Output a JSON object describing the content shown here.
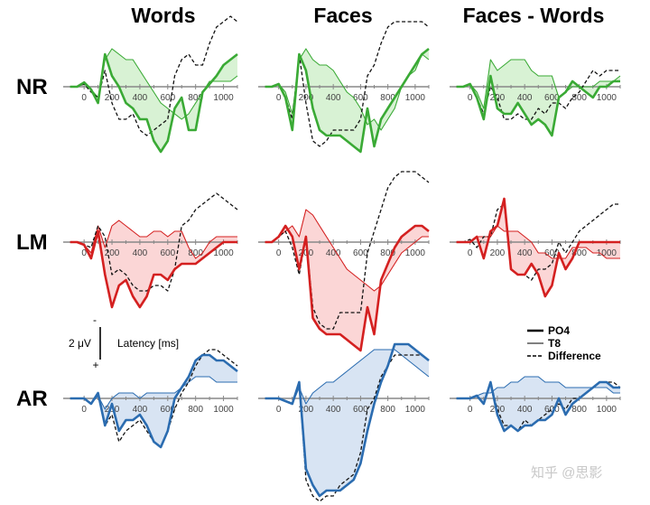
{
  "chart_data": {
    "type": "line",
    "columns": [
      "Words",
      "Faces",
      "Faces - Words"
    ],
    "rows": [
      "NR",
      "LM",
      "AR"
    ],
    "row_colors": {
      "NR": "#3aaa35",
      "LM": "#d42020",
      "AR": "#2b6cb0"
    },
    "row_fills": {
      "NR": "#d8f2d4",
      "LM": "#fbd6d6",
      "AR": "#d8e4f3"
    },
    "x_ticks": [
      0,
      200,
      400,
      600,
      800,
      1000
    ],
    "xlim": [
      -150,
      1100
    ],
    "ylim": [
      -8,
      12
    ],
    "y_note": "negative up",
    "series_style": [
      {
        "name": "PO4",
        "style": "thick"
      },
      {
        "name": "T8",
        "style": "thin"
      },
      {
        "name": "Difference",
        "style": "dashed"
      }
    ],
    "panels": [
      {
        "row": "NR",
        "column": "Words",
        "x": [
          -100,
          -50,
          0,
          50,
          100,
          150,
          200,
          250,
          300,
          350,
          400,
          450,
          500,
          550,
          600,
          650,
          700,
          750,
          800,
          850,
          900,
          950,
          1000,
          1050,
          1100
        ],
        "PO4": [
          0,
          0,
          -0.8,
          0.5,
          3,
          -6,
          -2,
          0,
          3,
          4,
          6,
          6,
          10,
          12,
          10,
          4,
          2,
          8,
          8,
          1,
          -0.5,
          -2,
          -4,
          -5,
          -6
        ],
        "T8": [
          0,
          0,
          -0.5,
          0.5,
          2,
          -5,
          -7,
          -6,
          -5,
          -5,
          -3,
          -1,
          1,
          3,
          4,
          5,
          6,
          5,
          3,
          1,
          -1,
          -1,
          -1,
          -1,
          -2
        ],
        "Difference": [
          0,
          0,
          -0.5,
          1,
          2,
          -3,
          3,
          6,
          6,
          5,
          8,
          9,
          8,
          7,
          6,
          -2,
          -5,
          -6,
          -4,
          -4,
          -8,
          -11,
          -12,
          -13,
          -12
        ]
      },
      {
        "row": "NR",
        "column": "Faces",
        "x": [
          -100,
          -50,
          0,
          50,
          100,
          150,
          200,
          250,
          300,
          350,
          400,
          450,
          500,
          550,
          600,
          650,
          700,
          750,
          800,
          850,
          900,
          950,
          1000,
          1050,
          1100
        ],
        "PO4": [
          0,
          0,
          -0.5,
          2,
          8,
          -6,
          -3,
          4,
          8,
          9,
          9,
          9,
          10,
          11,
          12,
          4,
          11,
          6,
          4,
          2,
          0,
          -2,
          -4,
          -6,
          -7
        ],
        "T8": [
          0,
          0,
          -0.5,
          1,
          5,
          -5,
          -7,
          -5,
          -4,
          -4,
          -3,
          -1,
          1,
          2,
          4,
          7,
          6,
          8,
          6,
          4,
          0,
          -2,
          -3,
          -6,
          -5
        ],
        "Difference": [
          0,
          0,
          -0.5,
          2,
          6,
          -6,
          3,
          10,
          11,
          10,
          8,
          8,
          8,
          8,
          6,
          -2,
          -4,
          -8,
          -11,
          -12,
          -12,
          -12,
          -12,
          -12,
          -11
        ]
      },
      {
        "row": "NR",
        "column": "Faces - Words",
        "x": [
          -100,
          -50,
          0,
          50,
          100,
          150,
          200,
          250,
          300,
          350,
          400,
          450,
          500,
          550,
          600,
          650,
          700,
          750,
          800,
          850,
          900,
          950,
          1000,
          1050,
          1100
        ],
        "PO4": [
          0,
          0,
          -0.5,
          2,
          6,
          -2,
          4,
          5,
          5,
          3,
          5,
          7,
          6,
          7,
          9,
          2,
          1,
          -1,
          0,
          1,
          2,
          0,
          0,
          -1,
          -1
        ],
        "T8": [
          0,
          0,
          -0.5,
          1,
          4,
          -5,
          -3,
          -4,
          -5,
          -5,
          -5,
          -3,
          -2,
          -2,
          -2,
          2,
          1,
          0,
          0,
          0,
          0,
          -1,
          -1,
          -1,
          -2
        ],
        "Difference": [
          0,
          0,
          -0.5,
          2,
          5,
          0,
          2,
          6,
          6,
          5,
          6,
          6,
          4,
          5,
          3,
          3,
          4,
          2,
          1,
          -1,
          -3,
          -2,
          -3,
          -3,
          -3
        ]
      },
      {
        "row": "LM",
        "column": "Words",
        "x": [
          -100,
          -50,
          0,
          50,
          100,
          150,
          200,
          250,
          300,
          350,
          400,
          450,
          500,
          550,
          600,
          650,
          700,
          750,
          800,
          850,
          900,
          950,
          1000,
          1050,
          1100
        ],
        "PO4": [
          0,
          0,
          0.5,
          3,
          -2,
          6,
          12,
          8,
          7,
          10,
          12,
          10,
          6,
          6,
          7,
          5,
          4,
          4,
          4,
          3,
          2,
          1,
          0,
          0,
          0
        ],
        "T8": [
          0,
          0,
          0.5,
          2,
          -3,
          1,
          -3,
          -4,
          -3,
          -2,
          -1,
          -1,
          -2,
          -2,
          -1,
          -2,
          -2,
          1,
          3,
          2,
          0,
          -1,
          -1,
          -1,
          -1
        ],
        "Difference": [
          0,
          0,
          0.5,
          1,
          -3,
          -1,
          6,
          5,
          6,
          8,
          9,
          9,
          8,
          8,
          9,
          5,
          -3,
          -4,
          -6,
          -7,
          -8,
          -9,
          -8,
          -7,
          -6
        ]
      },
      {
        "row": "LM",
        "column": "Faces",
        "x": [
          -100,
          -50,
          0,
          50,
          100,
          150,
          200,
          250,
          300,
          350,
          400,
          450,
          500,
          550,
          600,
          650,
          700,
          750,
          800,
          850,
          900,
          950,
          1000,
          1050,
          1100
        ],
        "PO4": [
          0,
          0,
          -1,
          -3,
          -1,
          5,
          -1,
          14,
          16,
          17,
          17,
          17,
          18,
          19,
          20,
          12,
          17,
          7,
          4,
          1,
          -1,
          -2,
          -3,
          -3,
          -2
        ],
        "T8": [
          0,
          0,
          -1,
          -2,
          -3,
          -1,
          -6,
          -5,
          -3,
          -1,
          1,
          3,
          5,
          6,
          7,
          8,
          9,
          8,
          6,
          4,
          2,
          1,
          0,
          -1,
          -1
        ],
        "Difference": [
          0,
          0,
          -1,
          -2,
          1,
          6,
          -1,
          12,
          15,
          16,
          16,
          13,
          13,
          13,
          13,
          2,
          -2,
          -6,
          -10,
          -12,
          -13,
          -13,
          -13,
          -12,
          -11
        ]
      },
      {
        "row": "LM",
        "column": "Faces - Words",
        "x": [
          -100,
          -50,
          0,
          50,
          100,
          150,
          200,
          250,
          300,
          350,
          400,
          450,
          500,
          550,
          600,
          650,
          700,
          750,
          800,
          850,
          900,
          950,
          1000,
          1050,
          1100
        ],
        "PO4": [
          0,
          0,
          0,
          -1,
          3,
          -2,
          -3,
          -8,
          5,
          6,
          6,
          4,
          6,
          10,
          8,
          2,
          5,
          3,
          0,
          0,
          0,
          0,
          0,
          0,
          0
        ],
        "T8": [
          0,
          0,
          0,
          -1,
          -1,
          -1,
          -3,
          -2,
          -2,
          -2,
          -1,
          0,
          2,
          2,
          3,
          3,
          3,
          1,
          1,
          1,
          2,
          2,
          3,
          3,
          3
        ],
        "Difference": [
          0,
          0,
          -0.5,
          1,
          -1,
          -1,
          -6,
          -7,
          5,
          6,
          6,
          7,
          5,
          5,
          4,
          0,
          2,
          0,
          -2,
          -3,
          -4,
          -5,
          -6,
          -7,
          -7
        ]
      },
      {
        "row": "AR",
        "column": "Words",
        "x": [
          -100,
          -50,
          0,
          50,
          100,
          150,
          200,
          250,
          300,
          350,
          400,
          450,
          500,
          550,
          600,
          650,
          700,
          750,
          800,
          850,
          900,
          950,
          1000,
          1050,
          1100
        ],
        "PO4": [
          0,
          0,
          0,
          1,
          -1,
          5,
          1,
          6,
          4,
          4,
          3,
          5,
          8,
          9,
          6,
          0,
          -2,
          -4,
          -7,
          -8,
          -8,
          -7,
          -7,
          -6,
          -5
        ],
        "T8": [
          0,
          0,
          0,
          1,
          -0.5,
          2,
          0,
          -1,
          -1,
          -1,
          0,
          -1,
          -1,
          -1,
          -1,
          -1,
          -2,
          -3,
          -4,
          -4,
          -4,
          -3,
          -3,
          -3,
          -3
        ],
        "Difference": [
          0,
          0,
          0,
          1,
          -1,
          5,
          3,
          8,
          6,
          5,
          4,
          6,
          8,
          9,
          6,
          2,
          -1,
          -3,
          -6,
          -8,
          -9,
          -9,
          -8,
          -7,
          -6
        ]
      },
      {
        "row": "AR",
        "column": "Faces",
        "x": [
          -100,
          -50,
          0,
          50,
          100,
          150,
          200,
          250,
          300,
          350,
          400,
          450,
          500,
          550,
          600,
          650,
          700,
          750,
          800,
          850,
          900,
          950,
          1000,
          1050,
          1100
        ],
        "PO4": [
          0,
          0,
          0,
          0.5,
          1,
          -3,
          13,
          16,
          18,
          17,
          17,
          17,
          16,
          15,
          12,
          6,
          1,
          -3,
          -6,
          -10,
          -10,
          -10,
          -9,
          -8,
          -7
        ],
        "T8": [
          0,
          0,
          0,
          0.5,
          1,
          -2,
          1,
          -1,
          -2,
          -3,
          -3,
          -4,
          -5,
          -6,
          -7,
          -8,
          -9,
          -9,
          -9,
          -9,
          -8,
          -7,
          -6,
          -5,
          -4
        ],
        "Difference": [
          0,
          0,
          0,
          0.5,
          1,
          -3,
          15,
          18,
          19,
          18,
          18,
          16,
          15,
          14,
          10,
          2,
          0,
          -4,
          -6,
          -8,
          -8,
          -8,
          -8,
          -8,
          -7
        ]
      },
      {
        "row": "AR",
        "column": "Faces - Words",
        "x": [
          -100,
          -50,
          0,
          50,
          100,
          150,
          200,
          250,
          300,
          350,
          400,
          450,
          500,
          550,
          600,
          650,
          700,
          750,
          800,
          850,
          900,
          950,
          1000,
          1050,
          1100
        ],
        "PO4": [
          0,
          0,
          0,
          -0.5,
          1,
          -3,
          3,
          6,
          5,
          6,
          5,
          5,
          4,
          4,
          3,
          0,
          3,
          1,
          0,
          -1,
          -2,
          -3,
          -3,
          -2,
          -2
        ],
        "T8": [
          0,
          0,
          0,
          -0.5,
          -1,
          -1,
          -2,
          -2,
          -3,
          -3,
          -4,
          -4,
          -4,
          -3,
          -3,
          -3,
          -2,
          -2,
          -2,
          -2,
          -2,
          -2,
          -2,
          -1,
          -1
        ],
        "Difference": [
          0,
          0,
          0,
          -0.5,
          1,
          -3,
          2,
          5,
          5,
          6,
          4,
          5,
          4,
          3,
          2,
          1,
          2,
          0,
          0,
          -1,
          -2,
          -3,
          -3,
          -3,
          -2
        ]
      }
    ],
    "scale_bar": {
      "value_label": "2 μV",
      "minus": "-",
      "plus": "+",
      "x_label": "Latency [ms]"
    },
    "legend": [
      "PO4",
      "T8",
      "Difference"
    ]
  },
  "watermark": "知乎 @思影"
}
